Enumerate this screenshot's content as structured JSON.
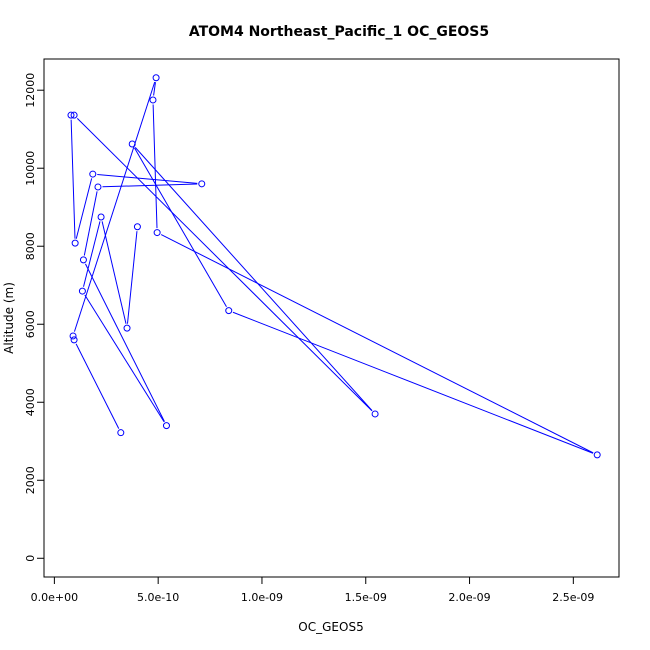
{
  "chart_data": {
    "type": "line",
    "title": "ATOM4 Northeast_Pacific_1 OC_GEOS5",
    "xlabel": "OC_GEOS5",
    "ylabel": "Altitude (m)",
    "xlim": [
      -5e-11,
      2.72e-09
    ],
    "ylim": [
      -480,
      12800
    ],
    "x_ticks": [
      0,
      5e-10,
      1e-09,
      1.5e-09,
      2e-09,
      2.5e-09
    ],
    "x_tick_labels": [
      "0.0e+00",
      "5.0e-10",
      "1.0e-09",
      "1.5e-09",
      "2.0e-09",
      "2.5e-09"
    ],
    "y_ticks": [
      0,
      2000,
      4000,
      6000,
      8000,
      10000,
      12000
    ],
    "y_tick_labels": [
      "0",
      "2000",
      "4000",
      "6000",
      "8000",
      "10000",
      "12000"
    ],
    "grid": false,
    "markers": "open-circle",
    "series": [
      {
        "color": "#0000ff",
        "points": [
          {
            "x": 3.2e-10,
            "y": 3220
          },
          {
            "x": 9.5e-11,
            "y": 5600
          },
          {
            "x": 9e-11,
            "y": 5700
          },
          {
            "x": 4.9e-10,
            "y": 12320
          },
          {
            "x": 4.75e-10,
            "y": 11750
          },
          {
            "x": 4.95e-10,
            "y": 8350
          },
          {
            "x": 2.615e-09,
            "y": 2650
          },
          {
            "x": 8.4e-10,
            "y": 6350
          },
          {
            "x": 3.75e-10,
            "y": 10620
          },
          {
            "x": 1.545e-09,
            "y": 3700
          },
          {
            "x": 9.5e-11,
            "y": 11360
          },
          {
            "x": 8e-11,
            "y": 11360
          },
          {
            "x": 1e-10,
            "y": 8080
          },
          {
            "x": 1.85e-10,
            "y": 9850
          },
          {
            "x": 7.1e-10,
            "y": 9600
          },
          {
            "x": 2.1e-10,
            "y": 9520
          },
          {
            "x": 1.4e-10,
            "y": 7650
          },
          {
            "x": 5.4e-10,
            "y": 3400
          },
          {
            "x": 1.35e-10,
            "y": 6850
          },
          {
            "x": 2.25e-10,
            "y": 8750
          },
          {
            "x": 3.5e-10,
            "y": 5900
          },
          {
            "x": 4e-10,
            "y": 8500
          }
        ]
      }
    ]
  }
}
